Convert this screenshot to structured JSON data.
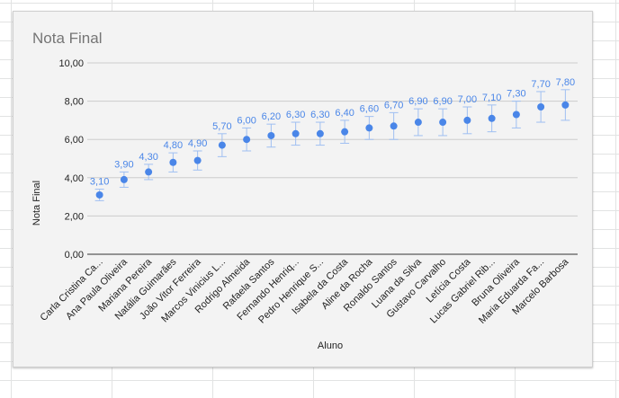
{
  "chart_data": {
    "type": "scatter",
    "title": "Nota Final",
    "xlabel": "Aluno",
    "ylabel": "Nota Final",
    "ylim": [
      0,
      10
    ],
    "yticks": [
      "0,00",
      "2,00",
      "4,00",
      "6,00",
      "8,00",
      "10,00"
    ],
    "yticks_values": [
      0,
      2,
      4,
      6,
      8,
      10
    ],
    "categories": [
      "Carla Cristina Ca...",
      "Ana Paula Oliveira",
      "Mariana Pereira",
      "Natália Guimarães",
      "João Vitor Ferreira",
      "Marcos Vinicius L...",
      "Rodrigo Almeida",
      "Rafaela Santos",
      "Fernando Henriq...",
      "Pedro Henrique S...",
      "Isabela da Costa",
      "Aline da Rocha",
      "Ronaldo Santos",
      "Luana da Silva",
      "Gustavo Carvalho",
      "Letícia Costa",
      "Lucas Gabriel Rib...",
      "Bruna Oliveira",
      "Maria Eduarda Fa...",
      "Marcelo Barbosa"
    ],
    "series": [
      {
        "name": "Nota Final",
        "values": [
          3.1,
          3.9,
          4.3,
          4.8,
          4.9,
          5.7,
          6.0,
          6.2,
          6.3,
          6.3,
          6.4,
          6.6,
          6.7,
          6.9,
          6.9,
          7.0,
          7.1,
          7.3,
          7.7,
          7.8
        ],
        "labels": [
          "3,10",
          "3,90",
          "4,30",
          "4,80",
          "4,90",
          "5,70",
          "6,00",
          "6,20",
          "6,30",
          "6,30",
          "6,40",
          "6,60",
          "6,70",
          "6,90",
          "6,90",
          "7,00",
          "7,10",
          "7,30",
          "7,70",
          "7,80"
        ],
        "error_low": [
          2.8,
          3.5,
          3.9,
          4.3,
          4.4,
          5.1,
          5.4,
          5.6,
          5.7,
          5.7,
          5.8,
          6.0,
          6.0,
          6.2,
          6.2,
          6.3,
          6.4,
          6.6,
          6.9,
          7.0
        ],
        "error_high": [
          3.4,
          4.3,
          4.7,
          5.3,
          5.4,
          6.3,
          6.6,
          6.8,
          6.9,
          6.9,
          7.0,
          7.2,
          7.4,
          7.6,
          7.6,
          7.7,
          7.8,
          8.0,
          8.5,
          8.6
        ],
        "color": "#4a86e8"
      }
    ],
    "grid": true,
    "legend": "none"
  }
}
